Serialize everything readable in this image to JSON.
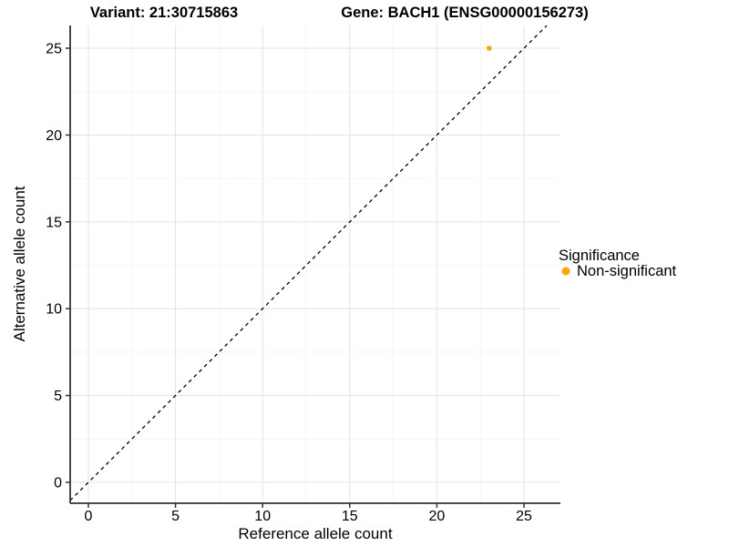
{
  "header": {
    "variant_title": "Variant: 21:30715863",
    "gene_title": "Gene: BACH1 (ENSG00000156273)"
  },
  "chart_data": {
    "type": "scatter",
    "title": "Variant: 21:30715863   Gene: BACH1 (ENSG00000156273)",
    "xlabel": "Reference allele count",
    "ylabel": "Alternative allele count",
    "x_ticks": [
      0,
      5,
      10,
      15,
      20,
      25
    ],
    "y_ticks": [
      0,
      5,
      10,
      15,
      20,
      25
    ],
    "xlim": [
      -1.05,
      27.1
    ],
    "ylim": [
      -1.2,
      26.3
    ],
    "grid": "major and minor, light gray, on white panel",
    "points": [
      {
        "x": 23,
        "y": 25,
        "series": "Non-significant"
      }
    ],
    "identity_line": {
      "equation": "y = x",
      "style": "dashed",
      "color": "#000000"
    },
    "legend": {
      "position": "right",
      "title": "Significance",
      "entries": [
        {
          "label": "Non-significant",
          "color": "#FFA500"
        }
      ]
    },
    "colors": {
      "point": "#FFA500",
      "axis": "#333333",
      "grid_major": "#e5e5e5",
      "grid_minor": "#f3f3f3",
      "text": "#000000"
    }
  }
}
